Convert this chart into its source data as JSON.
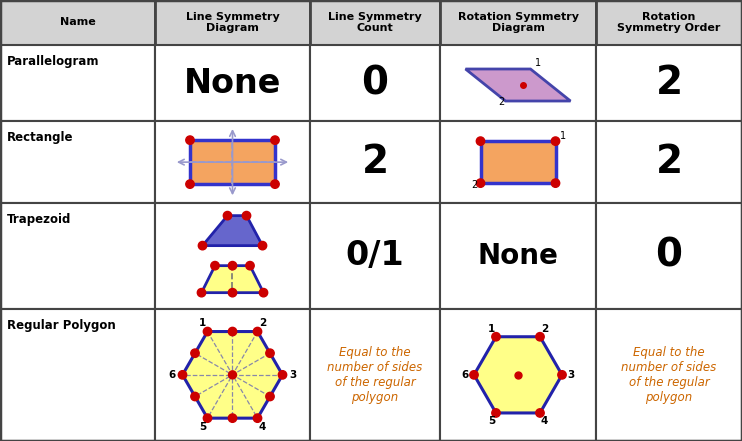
{
  "col_headers": [
    "Name",
    "Line Symmetry\nDiagram",
    "Line Symmetry\nCount",
    "Rotation Symmetry\nDiagram",
    "Rotation\nSymmetry Order"
  ],
  "rows": [
    "Parallelogram",
    "Rectangle",
    "Trapezoid",
    "Regular Polygon"
  ],
  "header_bg": "#d3d3d3",
  "border_color": "#444444",
  "orange_fill": "#f4a460",
  "blue_fill": "#6666cc",
  "purple_fill": "#cc99cc",
  "yellow_fill": "#ffff88",
  "red_dot": "#cc0000",
  "arrow_color": "#9999cc",
  "line_sym_text_color": "#cc6600"
}
